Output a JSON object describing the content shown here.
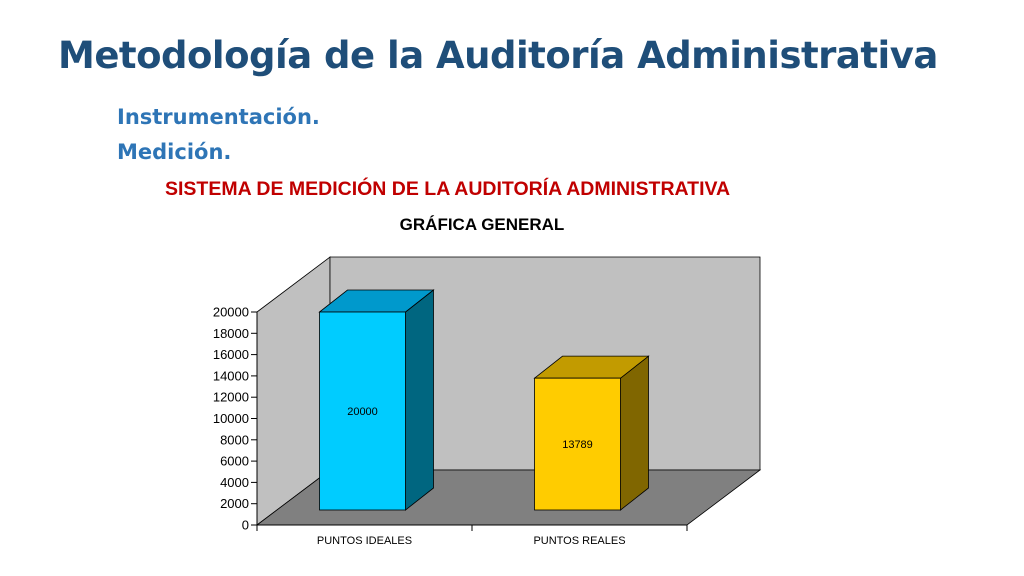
{
  "slide": {
    "title": "Metodología de la Auditoría Administrativa",
    "bullets": [
      "Instrumentación.",
      "Medición."
    ],
    "subtitle": "SISTEMA DE MEDICIÓN DE LA AUDITORÍA ADMINISTRATIVA"
  },
  "colors": {
    "title": "#1f4e79",
    "bullets": "#2e75b6",
    "subtitle": "#c00000"
  },
  "chart_data": {
    "type": "bar",
    "title": "GRÁFICA GENERAL",
    "categories": [
      "PUNTOS IDEALES",
      "PUNTOS REALES"
    ],
    "values": [
      20000,
      13789
    ],
    "data_labels": [
      "20000",
      "13789"
    ],
    "ylim": [
      0,
      20000
    ],
    "yticks": [
      0,
      2000,
      4000,
      6000,
      8000,
      10000,
      12000,
      14000,
      16000,
      18000,
      20000
    ],
    "style": "3d",
    "grid": false,
    "legend": "none",
    "bar_colors": [
      {
        "front": "#00ccff",
        "top": "#0099cc",
        "side": "#006680"
      },
      {
        "front": "#ffcc00",
        "top": "#c29b00",
        "side": "#806600"
      }
    ],
    "wall_color": "#c0c0c0",
    "floor_color": "#808080"
  }
}
